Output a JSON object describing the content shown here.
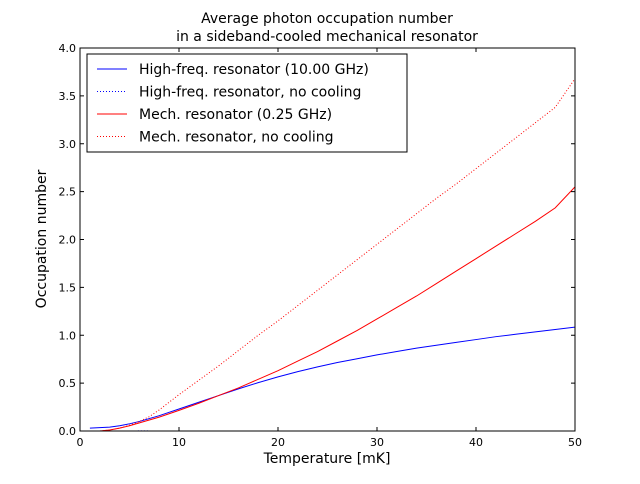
{
  "chart_data": {
    "type": "line",
    "title": [
      "Average photon occupation number",
      "in a sideband-cooled mechanical resonator"
    ],
    "xlabel": "Temperature [mK]",
    "ylabel": "Occupation number",
    "xlim": [
      0,
      50
    ],
    "ylim": [
      0,
      4.0
    ],
    "xticks": [
      0,
      10,
      20,
      30,
      40,
      50
    ],
    "xtick_labels": [
      "0",
      "10",
      "20",
      "30",
      "40",
      "50"
    ],
    "yticks": [
      0,
      0.5,
      1.0,
      1.5,
      2.0,
      2.5,
      3.0,
      3.5,
      4.0
    ],
    "ytick_labels": [
      "0.0",
      "0.5",
      "1.0",
      "1.5",
      "2.0",
      "2.5",
      "3.0",
      "3.5",
      "4.0"
    ],
    "grid": false,
    "legend_position": "top-left",
    "series": [
      {
        "name": "High-freq. resonator (10.00 GHz)",
        "color": "#0000ff",
        "style": "solid",
        "x": [
          1,
          2,
          3,
          4,
          5,
          6,
          7,
          8,
          9,
          10,
          12,
          14,
          16,
          18,
          20,
          22,
          24,
          26,
          28,
          30,
          32,
          34,
          36,
          38,
          40,
          42,
          44,
          46,
          48,
          50
        ],
        "y": [
          0.03,
          0.035,
          0.04,
          0.055,
          0.075,
          0.1,
          0.13,
          0.16,
          0.195,
          0.23,
          0.3,
          0.37,
          0.44,
          0.505,
          0.565,
          0.62,
          0.67,
          0.715,
          0.755,
          0.795,
          0.83,
          0.865,
          0.895,
          0.925,
          0.955,
          0.985,
          1.01,
          1.035,
          1.06,
          1.085
        ]
      },
      {
        "name": "High-freq. resonator, no cooling",
        "color": "#0000ff",
        "style": "dotted",
        "x": [
          1,
          2,
          3,
          4,
          5,
          6,
          7
        ],
        "y": [
          0.0,
          0.0,
          0.0,
          0.0001,
          0.0003,
          0.0008,
          0.0014
        ]
      },
      {
        "name": "Mech. resonator (0.25 GHz)",
        "color": "#ff0000",
        "style": "solid",
        "x": [
          2,
          3,
          4,
          5,
          6,
          7,
          8,
          9,
          10,
          12,
          14,
          16,
          18,
          20,
          22,
          24,
          26,
          28,
          30,
          32,
          34,
          36,
          38,
          40,
          42,
          44,
          46,
          48,
          50
        ],
        "y": [
          0.0,
          0.01,
          0.03,
          0.055,
          0.085,
          0.115,
          0.145,
          0.18,
          0.215,
          0.29,
          0.37,
          0.45,
          0.54,
          0.63,
          0.73,
          0.83,
          0.94,
          1.05,
          1.17,
          1.29,
          1.41,
          1.54,
          1.67,
          1.8,
          1.93,
          2.06,
          2.19,
          2.33,
          2.55
        ]
      },
      {
        "name": "Mech. resonator, no cooling",
        "color": "#ff0000",
        "style": "dotted",
        "x": [
          2,
          3,
          4,
          5,
          6,
          7,
          8,
          9,
          10,
          12,
          14,
          16,
          18,
          20,
          22,
          24,
          26,
          28,
          30,
          32,
          34,
          36,
          38,
          40,
          42,
          44,
          46,
          48,
          50
        ],
        "y": [
          0.0,
          0.01,
          0.03,
          0.06,
          0.1,
          0.15,
          0.22,
          0.3,
          0.38,
          0.53,
          0.68,
          0.84,
          1.0,
          1.15,
          1.31,
          1.47,
          1.63,
          1.79,
          1.95,
          2.11,
          2.27,
          2.43,
          2.58,
          2.74,
          2.9,
          3.06,
          3.22,
          3.38,
          3.68
        ]
      }
    ]
  }
}
